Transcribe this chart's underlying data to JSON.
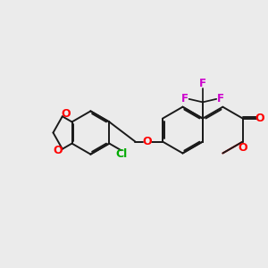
{
  "bg_color": "#ebebeb",
  "bond_color": "#1a1a1a",
  "oxygen_color": "#ff0000",
  "fluorine_color": "#cc00cc",
  "chlorine_color": "#00aa00",
  "line_width": 1.4,
  "dbo": 0.055,
  "figsize": [
    3.0,
    3.0
  ],
  "dpi": 100,
  "xlim": [
    0,
    10
  ],
  "ylim": [
    0,
    10
  ]
}
